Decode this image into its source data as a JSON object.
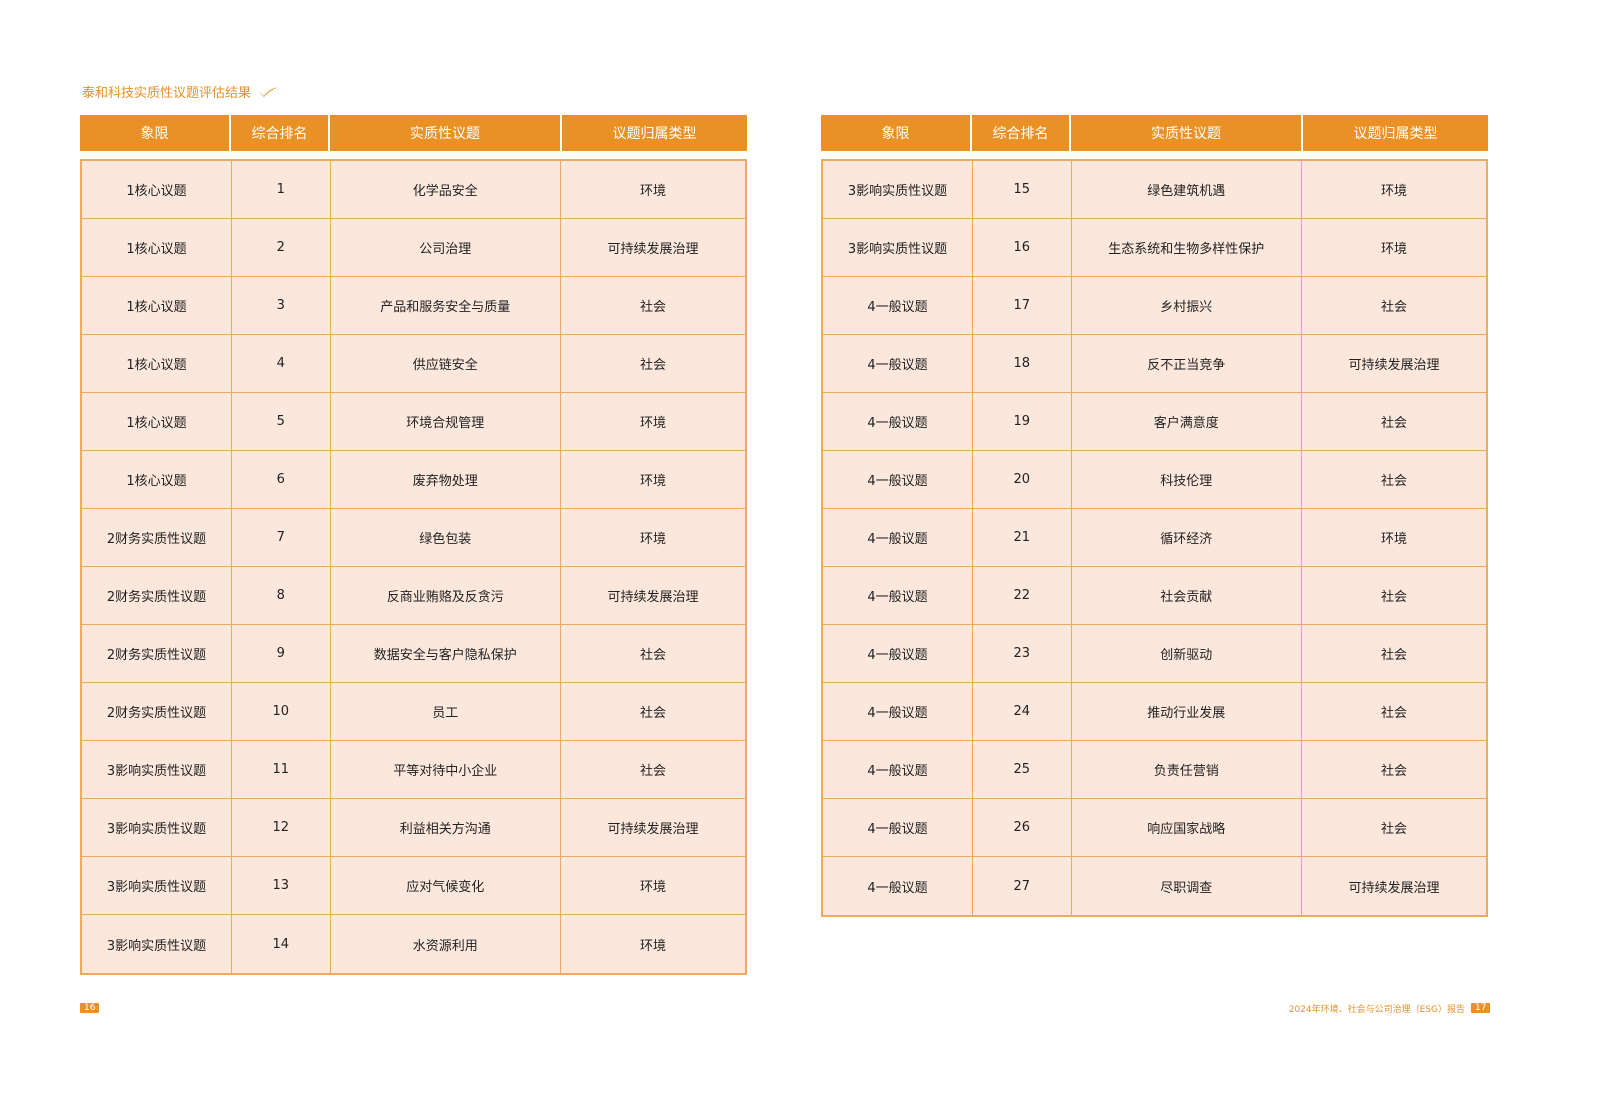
{
  "title": "泰和科技实质性议题评估结果",
  "headers": [
    "象限",
    "综合排名",
    "实质性议题",
    "议题归属类型"
  ],
  "left_rows": [
    [
      "1核心议题",
      "1",
      "化学品安全",
      "环境"
    ],
    [
      "1核心议题",
      "2",
      "公司治理",
      "可持续发展治理"
    ],
    [
      "1核心议题",
      "3",
      "产品和服务安全与质量",
      "社会"
    ],
    [
      "1核心议题",
      "4",
      "供应链安全",
      "社会"
    ],
    [
      "1核心议题",
      "5",
      "环境合规管理",
      "环境"
    ],
    [
      "1核心议题",
      "6",
      "废弃物处理",
      "环境"
    ],
    [
      "2财务实质性议题",
      "7",
      "绿色包装",
      "环境"
    ],
    [
      "2财务实质性议题",
      "8",
      "反商业贿赂及反贪污",
      "可持续发展治理"
    ],
    [
      "2财务实质性议题",
      "9",
      "数据安全与客户隐私保护",
      "社会"
    ],
    [
      "2财务实质性议题",
      "10",
      "员工",
      "社会"
    ],
    [
      "3影响实质性议题",
      "11",
      "平等对待中小企业",
      "社会"
    ],
    [
      "3影响实质性议题",
      "12",
      "利益相关方沟通",
      "可持续发展治理"
    ],
    [
      "3影响实质性议题",
      "13",
      "应对气候变化",
      "环境"
    ],
    [
      "3影响实质性议题",
      "14",
      "水资源利用",
      "环境"
    ]
  ],
  "right_rows": [
    [
      "3影响实质性议题",
      "15",
      "绿色建筑机遇",
      "环境"
    ],
    [
      "3影响实质性议题",
      "16",
      "生态系统和生物多样性保护",
      "环境"
    ],
    [
      "4一般议题",
      "17",
      "乡村振兴",
      "社会"
    ],
    [
      "4一般议题",
      "18",
      "反不正当竞争",
      "可持续发展治理"
    ],
    [
      "4一般议题",
      "19",
      "客户满意度",
      "社会"
    ],
    [
      "4一般议题",
      "20",
      "科技伦理",
      "社会"
    ],
    [
      "4一般议题",
      "21",
      "循环经济",
      "环境"
    ],
    [
      "4一般议题",
      "22",
      "社会贡献",
      "社会"
    ],
    [
      "4一般议题",
      "23",
      "创新驱动",
      "社会"
    ],
    [
      "4一般议题",
      "24",
      "推动行业发展",
      "社会"
    ],
    [
      "4一般议题",
      "25",
      "负责任营销",
      "社会"
    ],
    [
      "4一般议题",
      "26",
      "响应国家战略",
      "社会"
    ],
    [
      "4一般议题",
      "27",
      "尽职调查",
      "可持续发展治理"
    ]
  ],
  "footer": {
    "left_page": "16",
    "report_title": "2024年环境、社会与公司治理（ESG）报告",
    "right_page": "17"
  },
  "colors": {
    "accent": "#e99125",
    "row_bg": "#fce7dc"
  }
}
